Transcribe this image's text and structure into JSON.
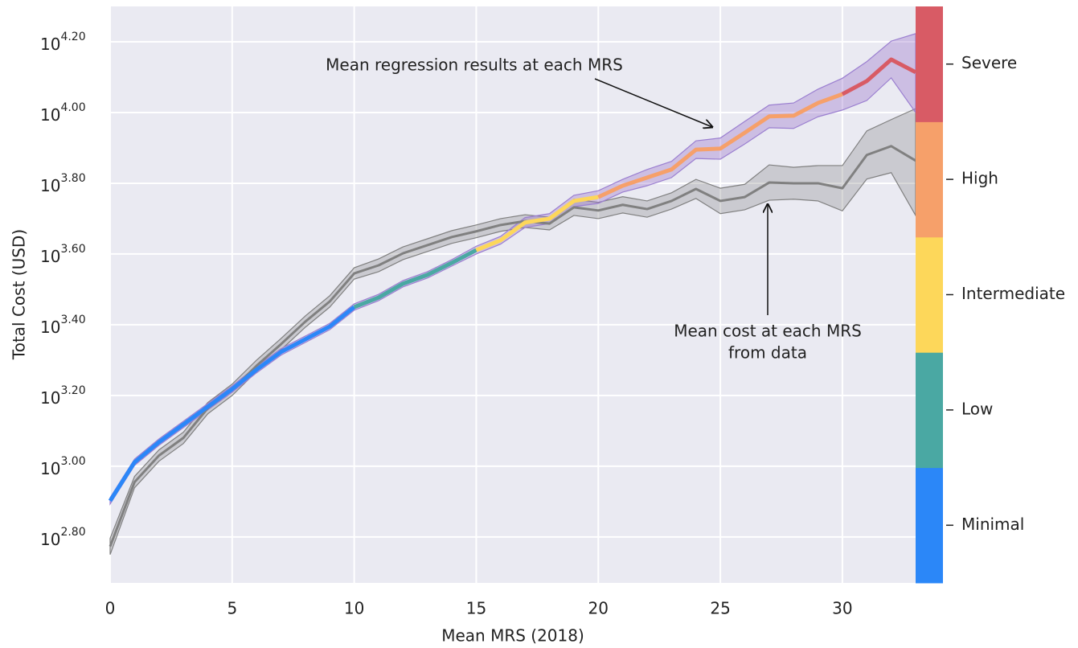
{
  "chart_data": {
    "type": "line",
    "x_label": "Mean MRS (2018)",
    "y_label": "Total Cost (USD)",
    "x": [
      0,
      1,
      2,
      3,
      4,
      5,
      6,
      7,
      8,
      9,
      10,
      11,
      12,
      13,
      14,
      15,
      16,
      17,
      18,
      19,
      20,
      21,
      22,
      23,
      24,
      25,
      26,
      27,
      28,
      29,
      30,
      31,
      32,
      33
    ],
    "xlim": [
      0,
      33
    ],
    "xticks": [
      0,
      5,
      10,
      15,
      20,
      25,
      30
    ],
    "ylim": [
      2.67,
      4.3
    ],
    "yticks": [
      {
        "value": 2.8,
        "label": "10",
        "exponent": "2.80"
      },
      {
        "value": 3.0,
        "label": "10",
        "exponent": "3.00"
      },
      {
        "value": 3.2,
        "label": "10",
        "exponent": "3.20"
      },
      {
        "value": 3.4,
        "label": "10",
        "exponent": "3.40"
      },
      {
        "value": 3.6,
        "label": "10",
        "exponent": "3.60"
      },
      {
        "value": 3.8,
        "label": "10",
        "exponent": "3.80"
      },
      {
        "value": 4.0,
        "label": "10",
        "exponent": "4.00"
      },
      {
        "value": 4.2,
        "label": "10",
        "exponent": "4.20"
      }
    ],
    "grid": true,
    "series": [
      {
        "role": "data",
        "color": "#808080",
        "band_color": "rgba(128,128,128,0.3)",
        "values": [
          2.773,
          2.955,
          3.03,
          3.08,
          3.164,
          3.216,
          3.284,
          3.345,
          3.409,
          3.466,
          3.545,
          3.568,
          3.602,
          3.625,
          3.648,
          3.664,
          3.682,
          3.693,
          3.686,
          3.732,
          3.723,
          3.739,
          3.727,
          3.75,
          3.784,
          3.75,
          3.761,
          3.802,
          3.8,
          3.8,
          3.786,
          3.88,
          3.905,
          3.864
        ],
        "lower": [
          2.75,
          2.939,
          3.014,
          3.064,
          3.148,
          3.2,
          3.268,
          3.329,
          3.393,
          3.45,
          3.529,
          3.55,
          3.584,
          3.607,
          3.63,
          3.646,
          3.664,
          3.675,
          3.668,
          3.709,
          3.7,
          3.716,
          3.704,
          3.727,
          3.757,
          3.714,
          3.725,
          3.752,
          3.755,
          3.75,
          3.722,
          3.812,
          3.83,
          3.709
        ],
        "upper": [
          2.796,
          2.971,
          3.046,
          3.096,
          3.18,
          3.232,
          3.3,
          3.361,
          3.425,
          3.482,
          3.561,
          3.586,
          3.62,
          3.643,
          3.666,
          3.682,
          3.7,
          3.711,
          3.704,
          3.755,
          3.746,
          3.762,
          3.75,
          3.773,
          3.811,
          3.786,
          3.797,
          3.852,
          3.845,
          3.85,
          3.85,
          3.948,
          3.98,
          4.011
        ]
      },
      {
        "role": "regression",
        "band_color": "rgba(150,110,200,0.35)",
        "band_edge": "#9b7fd0",
        "segment_starts": [
          0,
          10,
          15,
          20,
          30
        ],
        "values": [
          2.902,
          3.011,
          3.068,
          3.118,
          3.168,
          3.218,
          3.273,
          3.323,
          3.359,
          3.395,
          3.45,
          3.477,
          3.516,
          3.541,
          3.575,
          3.611,
          3.639,
          3.689,
          3.7,
          3.75,
          3.761,
          3.793,
          3.816,
          3.839,
          3.895,
          3.898,
          3.943,
          3.989,
          3.991,
          4.027,
          4.052,
          4.089,
          4.15,
          4.114
        ],
        "lower": [
          2.893,
          3.002,
          3.059,
          3.109,
          3.159,
          3.209,
          3.264,
          3.314,
          3.35,
          3.386,
          3.441,
          3.468,
          3.507,
          3.532,
          3.566,
          3.6,
          3.628,
          3.675,
          3.686,
          3.734,
          3.743,
          3.775,
          3.793,
          3.816,
          3.87,
          3.868,
          3.911,
          3.957,
          3.955,
          3.988,
          4.007,
          4.034,
          4.098,
          4.0
        ],
        "upper": [
          2.911,
          3.02,
          3.077,
          3.127,
          3.177,
          3.227,
          3.282,
          3.332,
          3.368,
          3.404,
          3.459,
          3.486,
          3.525,
          3.55,
          3.584,
          3.622,
          3.65,
          3.703,
          3.714,
          3.766,
          3.779,
          3.811,
          3.839,
          3.862,
          3.92,
          3.928,
          3.975,
          4.021,
          4.027,
          4.066,
          4.097,
          4.144,
          4.202,
          4.223
        ]
      }
    ],
    "colorbar": {
      "labels": [
        "Minimal",
        "Low",
        "Intermediate",
        "High",
        "Severe"
      ],
      "colors": [
        "#2b87f8",
        "#4aa8a3",
        "#fdd75a",
        "#f6a06a",
        "#d85b65"
      ]
    },
    "annotations": [
      [
        "Mean regression results at each MRS"
      ],
      [
        "Mean cost at each MRS",
        "from data"
      ]
    ]
  }
}
